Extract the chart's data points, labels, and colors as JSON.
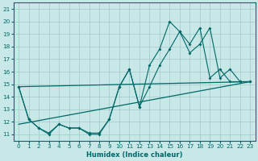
{
  "xlabel": "Humidex (Indice chaleur)",
  "bg_color": "#c8e8e8",
  "grid_color": "#a0c8c8",
  "line_color": "#006868",
  "xlim": [
    -0.5,
    23.5
  ],
  "ylim": [
    10.5,
    21.5
  ],
  "xticks": [
    0,
    1,
    2,
    3,
    4,
    5,
    6,
    7,
    8,
    9,
    10,
    11,
    12,
    13,
    14,
    15,
    16,
    17,
    18,
    19,
    20,
    21,
    22,
    23
  ],
  "yticks": [
    11,
    12,
    13,
    14,
    15,
    16,
    17,
    18,
    19,
    20,
    21
  ],
  "series1_x": [
    0,
    1,
    2,
    3,
    4,
    5,
    6,
    7,
    8,
    9,
    10,
    11,
    12,
    13,
    14,
    15,
    16,
    17,
    18,
    19,
    20,
    21,
    22,
    23
  ],
  "series1_y": [
    14.8,
    12.2,
    11.5,
    11.0,
    11.8,
    11.5,
    11.5,
    11.0,
    11.0,
    12.2,
    14.8,
    16.2,
    13.2,
    16.5,
    17.8,
    20.0,
    19.2,
    17.5,
    18.2,
    19.5,
    15.5,
    16.2,
    15.2,
    15.2
  ],
  "series2_x": [
    0,
    1,
    2,
    3,
    4,
    5,
    6,
    7,
    8,
    9,
    10,
    11,
    12,
    13,
    14,
    15,
    16,
    17,
    18,
    19,
    20,
    21,
    22,
    23
  ],
  "series2_y": [
    14.8,
    12.2,
    11.5,
    11.1,
    11.8,
    11.5,
    11.5,
    11.1,
    11.1,
    12.2,
    14.8,
    16.2,
    13.2,
    14.8,
    16.5,
    17.8,
    19.2,
    18.2,
    19.5,
    15.5,
    16.2,
    15.2,
    15.2,
    15.2
  ],
  "trend1_x": [
    0,
    23
  ],
  "trend1_y": [
    11.8,
    15.2
  ],
  "trend2_x": [
    0,
    23
  ],
  "trend2_y": [
    14.8,
    15.2
  ]
}
